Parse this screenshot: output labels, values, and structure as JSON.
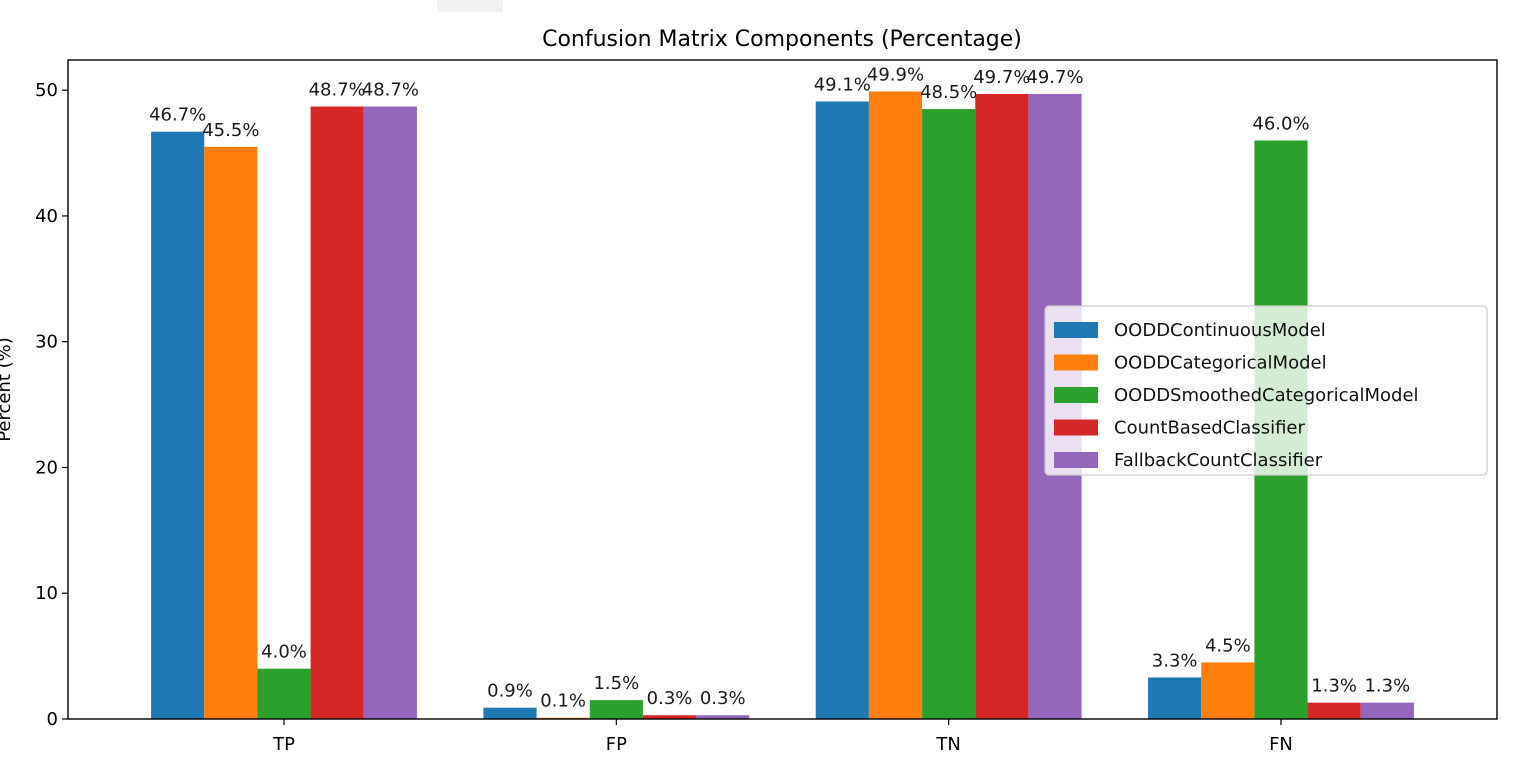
{
  "chart_data": {
    "type": "bar",
    "title": "Confusion Matrix Components (Percentage)",
    "xlabel": "",
    "ylabel": "Percent (%)",
    "categories": [
      "TP",
      "FP",
      "TN",
      "FN"
    ],
    "ylim": [
      0,
      52.4
    ],
    "yticks": [
      0,
      10,
      20,
      30,
      40,
      50
    ],
    "grid": false,
    "legend_position": "center-right",
    "series": [
      {
        "name": "OODDContinuousModel",
        "color": "#1f77b4",
        "values": [
          46.7,
          0.9,
          49.1,
          3.3
        ],
        "labels": [
          "46.7%",
          "0.9%",
          "49.1%",
          "3.3%"
        ]
      },
      {
        "name": "OODDCategoricalModel",
        "color": "#ff7f0e",
        "values": [
          45.5,
          0.1,
          49.9,
          4.5
        ],
        "labels": [
          "45.5%",
          "0.1%",
          "49.9%",
          "4.5%"
        ]
      },
      {
        "name": "OODDSmoothedCategoricalModel",
        "color": "#2ca02c",
        "values": [
          4.0,
          1.5,
          48.5,
          46.0
        ],
        "labels": [
          "4.0%",
          "1.5%",
          "48.5%",
          "46.0%"
        ]
      },
      {
        "name": "CountBasedClassifier",
        "color": "#d62728",
        "values": [
          48.7,
          0.3,
          49.7,
          1.3
        ],
        "labels": [
          "48.7%",
          "0.3%",
          "49.7%",
          "1.3%"
        ]
      },
      {
        "name": "FallbackCountClassifier",
        "color": "#9467bd",
        "values": [
          48.7,
          0.3,
          49.7,
          1.3
        ],
        "labels": [
          "48.7%",
          "0.3%",
          "49.7%",
          "1.3%"
        ]
      }
    ]
  }
}
